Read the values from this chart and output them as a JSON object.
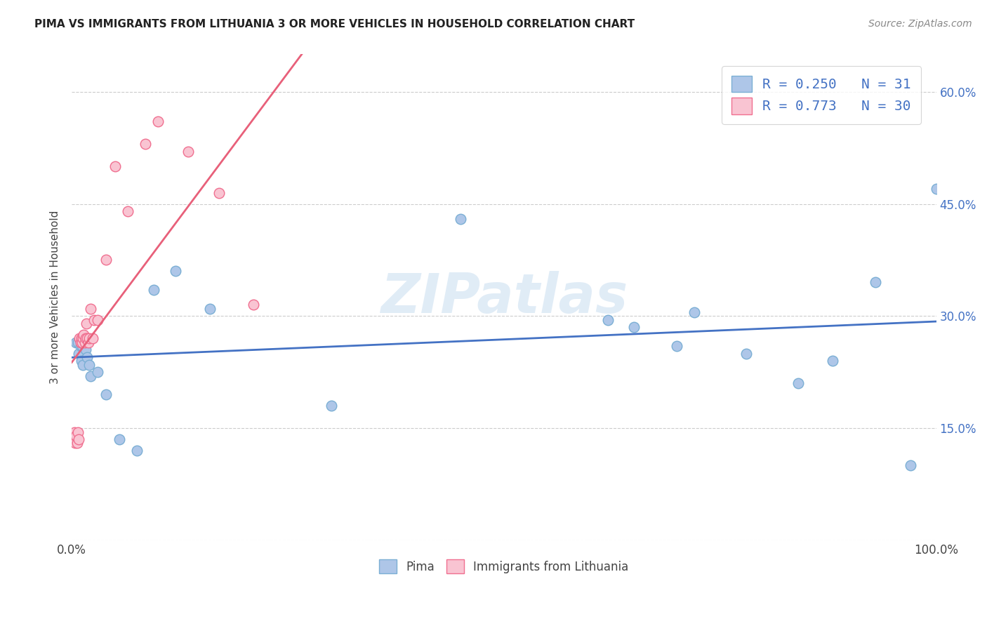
{
  "title": "PIMA VS IMMIGRANTS FROM LITHUANIA 3 OR MORE VEHICLES IN HOUSEHOLD CORRELATION CHART",
  "source": "Source: ZipAtlas.com",
  "ylabel": "3 or more Vehicles in Household",
  "xlim": [
    0,
    1.0
  ],
  "ylim": [
    0,
    0.65
  ],
  "xticks": [
    0.0,
    0.2,
    0.4,
    0.6,
    0.8,
    1.0
  ],
  "xticklabels": [
    "0.0%",
    "",
    "",
    "",
    "",
    "100.0%"
  ],
  "yticks": [
    0.0,
    0.15,
    0.3,
    0.45,
    0.6
  ],
  "yticklabels_right": [
    "",
    "15.0%",
    "30.0%",
    "45.0%",
    "60.0%"
  ],
  "pima_color": "#aec6e8",
  "pima_edge_color": "#7bafd4",
  "lithuania_color": "#f9c4d2",
  "lithuania_edge_color": "#f07090",
  "pima_line_color": "#4472c4",
  "lithuania_line_color": "#e8607a",
  "r_color": "#4472c4",
  "pima_R": 0.25,
  "pima_N": 31,
  "lithuania_R": 0.773,
  "lithuania_N": 30,
  "watermark": "ZIPatlas",
  "pima_x": [
    0.005,
    0.007,
    0.008,
    0.01,
    0.011,
    0.012,
    0.013,
    0.015,
    0.016,
    0.018,
    0.02,
    0.022,
    0.03,
    0.04,
    0.055,
    0.075,
    0.095,
    0.12,
    0.16,
    0.3,
    0.45,
    0.62,
    0.65,
    0.7,
    0.72,
    0.78,
    0.84,
    0.88,
    0.93,
    0.97,
    1.0
  ],
  "pima_y": [
    0.265,
    0.265,
    0.25,
    0.26,
    0.24,
    0.26,
    0.235,
    0.265,
    0.255,
    0.245,
    0.235,
    0.22,
    0.225,
    0.195,
    0.135,
    0.12,
    0.335,
    0.36,
    0.31,
    0.18,
    0.43,
    0.295,
    0.285,
    0.26,
    0.305,
    0.25,
    0.21,
    0.24,
    0.345,
    0.1,
    0.47
  ],
  "lithuania_x": [
    0.003,
    0.004,
    0.005,
    0.006,
    0.007,
    0.008,
    0.009,
    0.01,
    0.011,
    0.012,
    0.013,
    0.014,
    0.015,
    0.016,
    0.017,
    0.018,
    0.019,
    0.02,
    0.022,
    0.024,
    0.026,
    0.03,
    0.04,
    0.05,
    0.065,
    0.085,
    0.1,
    0.135,
    0.17,
    0.21
  ],
  "lithuania_y": [
    0.145,
    0.13,
    0.14,
    0.13,
    0.145,
    0.135,
    0.27,
    0.265,
    0.27,
    0.265,
    0.27,
    0.275,
    0.265,
    0.27,
    0.29,
    0.27,
    0.265,
    0.27,
    0.31,
    0.27,
    0.295,
    0.295,
    0.375,
    0.5,
    0.44,
    0.53,
    0.56,
    0.52,
    0.465,
    0.315
  ]
}
